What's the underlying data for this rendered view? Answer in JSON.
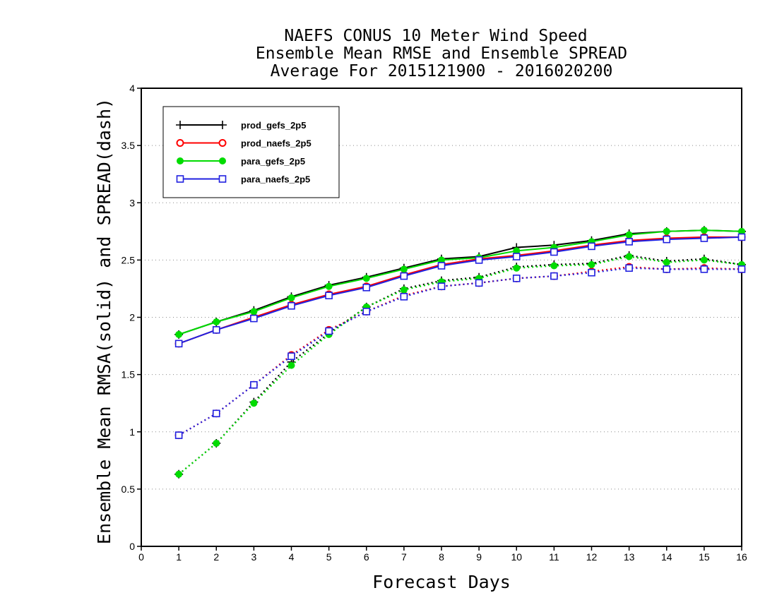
{
  "chart_data": {
    "type": "line",
    "title": [
      "NAEFS CONUS 10 Meter Wind Speed",
      "Ensemble Mean RMSE and Ensemble SPREAD",
      "Average For 2015121900 - 2016020200"
    ],
    "xlabel": "Forecast Days",
    "ylabel": "Ensemble Mean RMSA(solid) and SPREAD(dash)",
    "xlim": [
      0,
      16
    ],
    "ylim": [
      0,
      4
    ],
    "xticks": [
      0,
      1,
      2,
      3,
      4,
      5,
      6,
      7,
      8,
      9,
      10,
      11,
      12,
      13,
      14,
      15,
      16
    ],
    "yticks": [
      0,
      0.5,
      1,
      1.5,
      2,
      2.5,
      3,
      3.5,
      4
    ],
    "grid": "horizontal dotted",
    "legend_position": "top-left",
    "x": [
      1,
      2,
      3,
      4,
      5,
      6,
      7,
      8,
      9,
      10,
      11,
      12,
      13,
      14,
      15,
      16
    ],
    "series": [
      {
        "name": "prod_gefs_2p5",
        "color": "#000000",
        "marker": "plus",
        "rmse": [
          1.85,
          1.96,
          2.06,
          2.18,
          2.28,
          2.35,
          2.43,
          2.51,
          2.53,
          2.61,
          2.63,
          2.67,
          2.73,
          2.75,
          2.76,
          2.75
        ],
        "spread": [
          0.63,
          0.9,
          1.26,
          1.61,
          1.86,
          2.09,
          2.25,
          2.32,
          2.35,
          2.44,
          2.46,
          2.47,
          2.54,
          2.49,
          2.51,
          2.46
        ]
      },
      {
        "name": "prod_naefs_2p5",
        "color": "#ff0000",
        "marker": "circle",
        "rmse": [
          1.77,
          1.89,
          2.0,
          2.11,
          2.2,
          2.27,
          2.37,
          2.46,
          2.51,
          2.54,
          2.58,
          2.63,
          2.67,
          2.69,
          2.7,
          2.7
        ],
        "spread": [
          0.97,
          1.16,
          1.41,
          1.67,
          1.89,
          2.05,
          2.19,
          2.27,
          2.3,
          2.34,
          2.36,
          2.4,
          2.44,
          2.42,
          2.43,
          2.42
        ]
      },
      {
        "name": "para_gefs_2p5",
        "color": "#00dc00",
        "marker": "filled-circle",
        "rmse": [
          1.85,
          1.96,
          2.05,
          2.17,
          2.27,
          2.34,
          2.42,
          2.5,
          2.52,
          2.58,
          2.61,
          2.66,
          2.72,
          2.75,
          2.76,
          2.75
        ],
        "spread": [
          0.63,
          0.9,
          1.25,
          1.58,
          1.85,
          2.09,
          2.24,
          2.31,
          2.34,
          2.43,
          2.45,
          2.46,
          2.53,
          2.48,
          2.5,
          2.46
        ]
      },
      {
        "name": "para_naefs_2p5",
        "color": "#2020e0",
        "marker": "square",
        "rmse": [
          1.77,
          1.89,
          1.99,
          2.1,
          2.19,
          2.26,
          2.36,
          2.45,
          2.5,
          2.53,
          2.57,
          2.62,
          2.66,
          2.68,
          2.69,
          2.7
        ],
        "spread": [
          0.97,
          1.16,
          1.41,
          1.66,
          1.88,
          2.05,
          2.18,
          2.27,
          2.3,
          2.34,
          2.36,
          2.39,
          2.43,
          2.42,
          2.42,
          2.42
        ]
      }
    ]
  }
}
